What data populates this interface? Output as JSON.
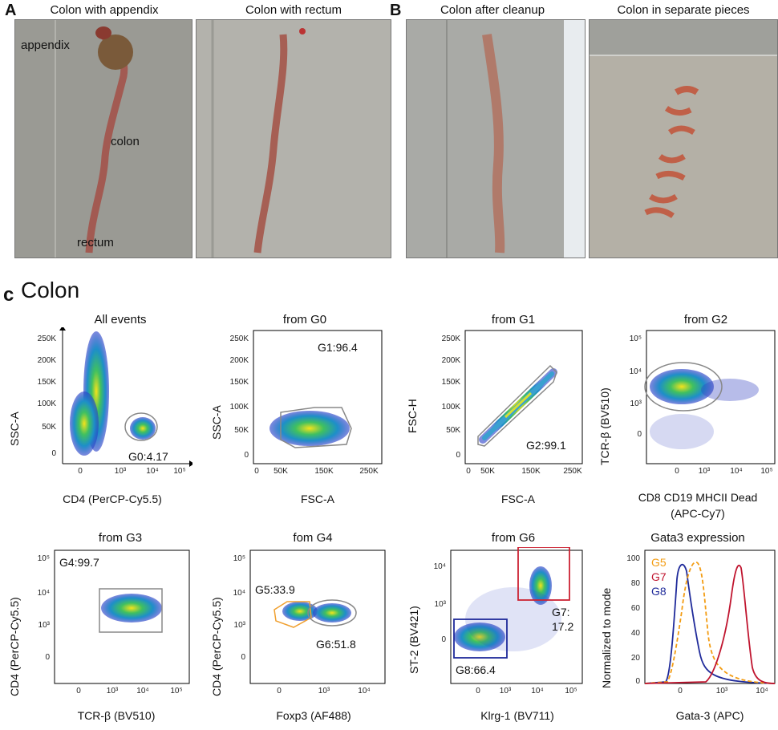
{
  "panel_a": {
    "letter": "A",
    "photos": [
      {
        "title": "Colon with appendix",
        "labels": {
          "appendix": "appendix",
          "colon": "colon",
          "rectum": "rectum"
        }
      },
      {
        "title": "Colon with rectum"
      }
    ]
  },
  "panel_b": {
    "letter": "B",
    "photos": [
      {
        "title": "Colon after cleanup"
      },
      {
        "title": "Colon in separate pieces"
      }
    ]
  },
  "panel_c": {
    "letter": "c",
    "title": "Colon"
  },
  "plots": {
    "p1": {
      "title": "All events",
      "xlabel": "CD4 (PerCP-Cy5.5)",
      "ylabel": "SSC-A",
      "gate": "G0:4.17",
      "yticks": [
        "250K",
        "200K",
        "150K",
        "100K",
        "50K",
        "0"
      ],
      "xticks": [
        "0",
        "10³",
        "10⁴",
        "10⁵"
      ]
    },
    "p2": {
      "title": "from G0",
      "xlabel": "FSC-A",
      "ylabel": "SSC-A",
      "gate": "G1:96.4",
      "yticks": [
        "250K",
        "200K",
        "150K",
        "100K",
        "50K",
        "0"
      ],
      "xticks": [
        "0",
        "50K",
        "150K",
        "250K"
      ]
    },
    "p3": {
      "title": "from G1",
      "xlabel": "FSC-A",
      "ylabel": "FSC-H",
      "gate": "G2:99.1",
      "yticks": [
        "250K",
        "200K",
        "150K",
        "100K",
        "50K",
        "0"
      ],
      "xticks": [
        "0",
        "50K",
        "150K",
        "250K"
      ]
    },
    "p4": {
      "title": "from G2",
      "xlabel": "CD8 CD19 MHCII Dead",
      "xlabel2": "(APC-Cy7)",
      "ylabel": "TCR-β (BV510)",
      "yticks": [
        "10⁵",
        "10⁴",
        "10³",
        "0"
      ],
      "xticks": [
        "0",
        "10³",
        "10⁴",
        "10⁵"
      ]
    },
    "p5": {
      "title": "from G3",
      "xlabel": "TCR-β (BV510)",
      "ylabel": "CD4 (PerCP-Cy5.5)",
      "gate": "G4:99.7",
      "yticks": [
        "10⁵",
        "10⁴",
        "10³",
        "0"
      ],
      "xticks": [
        "0",
        "10³",
        "10⁴",
        "10⁵"
      ]
    },
    "p6": {
      "title": "fom G4",
      "xlabel": "Foxp3 (AF488)",
      "ylabel": "CD4 (PerCP-Cy5.5)",
      "gate_a": "G5:33.9",
      "gate_b": "G6:51.8",
      "yticks": [
        "10⁵",
        "10⁴",
        "10³",
        "0"
      ],
      "xticks": [
        "0",
        "10³",
        "10⁴"
      ]
    },
    "p7": {
      "title": "from G6",
      "xlabel": "Klrg-1 (BV711)",
      "ylabel": "ST-2 (BV421)",
      "gate_a": "G7:",
      "gate_a2": "17.2",
      "gate_b": "G8:66.4",
      "yticks": [
        "10⁴",
        "10³",
        "0"
      ],
      "xticks": [
        "0",
        "10³",
        "10⁴",
        "10⁵"
      ]
    },
    "p8": {
      "title": "Gata3 expression",
      "xlabel": "Gata-3 (APC)",
      "ylabel": "Normalized to mode",
      "yticks": [
        "100",
        "80",
        "60",
        "40",
        "20",
        "0"
      ],
      "xticks": [
        "0",
        "10³",
        "10⁴"
      ],
      "legend": [
        {
          "name": "G5",
          "color": "#f39c12"
        },
        {
          "name": "G7",
          "color": "#c0152f"
        },
        {
          "name": "G8",
          "color": "#1f2a9a"
        }
      ]
    }
  },
  "colors": {
    "gate_gray": "#888888",
    "gate_orange": "#f0a030",
    "gate_red": "#cc2233",
    "gate_blue": "#1f2a9a"
  }
}
